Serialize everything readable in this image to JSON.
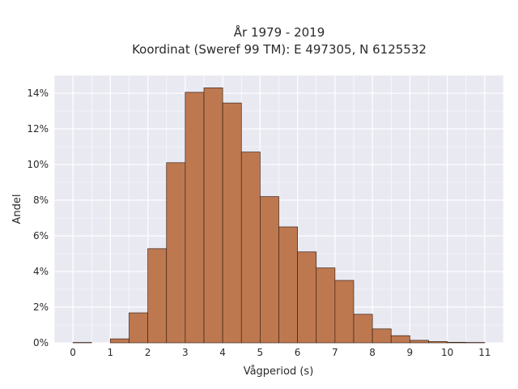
{
  "chart_data": {
    "type": "bar",
    "title_line1": "År 1979 - 2019",
    "title_line2": "Koordinat (Sweref 99 TM): E 497305, N 6125532",
    "xlabel": "Vågperiod (s)",
    "ylabel": "Andel",
    "x_ticks": [
      "0",
      "1",
      "2",
      "3",
      "4",
      "5",
      "6",
      "7",
      "8",
      "9",
      "10",
      "11"
    ],
    "y_ticks": [
      "0%",
      "2%",
      "4%",
      "6%",
      "8%",
      "10%",
      "12%",
      "14%"
    ],
    "xlim": [
      -0.5,
      11.5
    ],
    "ylim": [
      0,
      15
    ],
    "bin_width": 0.5,
    "bins": [
      {
        "x0": 0.0,
        "value": 0.02
      },
      {
        "x0": 0.5,
        "value": 0.0
      },
      {
        "x0": 1.0,
        "value": 0.22
      },
      {
        "x0": 1.5,
        "value": 1.68
      },
      {
        "x0": 2.0,
        "value": 5.28
      },
      {
        "x0": 2.5,
        "value": 10.1
      },
      {
        "x0": 3.0,
        "value": 14.05
      },
      {
        "x0": 3.5,
        "value": 14.3
      },
      {
        "x0": 4.0,
        "value": 13.45
      },
      {
        "x0": 4.5,
        "value": 10.7
      },
      {
        "x0": 5.0,
        "value": 8.2
      },
      {
        "x0": 5.5,
        "value": 6.5
      },
      {
        "x0": 6.0,
        "value": 5.1
      },
      {
        "x0": 6.5,
        "value": 4.2
      },
      {
        "x0": 7.0,
        "value": 3.5
      },
      {
        "x0": 7.5,
        "value": 1.6
      },
      {
        "x0": 8.0,
        "value": 0.78
      },
      {
        "x0": 8.5,
        "value": 0.4
      },
      {
        "x0": 9.0,
        "value": 0.14
      },
      {
        "x0": 9.5,
        "value": 0.07
      },
      {
        "x0": 10.0,
        "value": 0.03
      },
      {
        "x0": 10.5,
        "value": 0.02
      }
    ],
    "grid": true,
    "colors": {
      "bar_fill": "#be7850",
      "bar_edge": "#3a2415",
      "plot_bg": "#e9e9f2",
      "grid": "#ffffff"
    }
  }
}
